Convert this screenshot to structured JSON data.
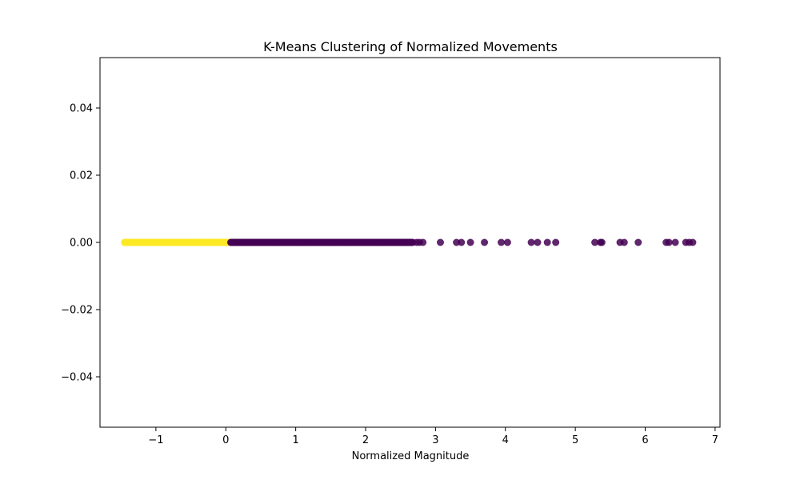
{
  "chart_data": {
    "type": "scatter",
    "title": "K-Means Clustering of Normalized Movements",
    "xlabel": "Normalized Magnitude",
    "ylabel": "",
    "xlim": [
      -1.8,
      7.07
    ],
    "ylim": [
      -0.055,
      0.055
    ],
    "x_ticks": [
      -1,
      0,
      1,
      2,
      3,
      4,
      5,
      6,
      7
    ],
    "x_tick_labels": [
      "−1",
      "0",
      "1",
      "2",
      "3",
      "4",
      "5",
      "6",
      "7"
    ],
    "y_ticks": [
      -0.04,
      -0.02,
      0.0,
      0.02,
      0.04
    ],
    "y_tick_labels": [
      "−0.04",
      "−0.02",
      "0.00",
      "0.02",
      "0.04"
    ],
    "grid": false,
    "clusters": [
      {
        "color": "#fde725",
        "x_range": [
          -1.45,
          0.05
        ],
        "y": 0.0
      },
      {
        "color": "#440154",
        "x_range": [
          0.07,
          2.68
        ],
        "y": 0.0,
        "outliers": [
          2.73,
          2.77,
          2.82,
          3.07,
          3.3,
          3.37,
          3.5,
          3.7,
          3.94,
          4.03,
          4.37,
          4.46,
          4.6,
          4.72,
          5.28,
          5.36,
          5.38,
          5.64,
          5.7,
          5.9,
          6.3,
          6.34,
          6.43,
          6.58,
          6.63,
          6.68
        ]
      }
    ]
  }
}
